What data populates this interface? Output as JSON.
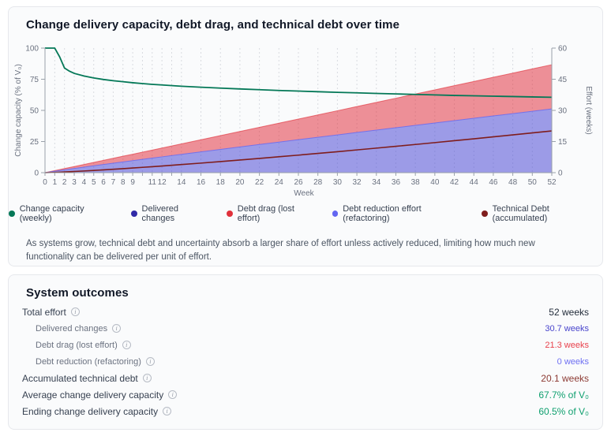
{
  "chart_card": {
    "title": "Change delivery capacity, debt drag, and technical debt over time",
    "description": "As systems grow, technical debt and uncertainty absorb a larger share of effort unless actively reduced, limiting how much new functionality can be delivered per unit of effort."
  },
  "legend": {
    "items": [
      {
        "label": "Change capacity (weekly)",
        "color": "#047857"
      },
      {
        "label": "Delivered changes",
        "color": "#312aa8"
      },
      {
        "label": "Debt drag (lost effort)",
        "color": "#e0313b"
      },
      {
        "label": "Debt reduction effort (refactoring)",
        "color": "#6366f1"
      },
      {
        "label": "Technical Debt (accumulated)",
        "color": "#7f1d1d"
      }
    ]
  },
  "chart_data": {
    "type": "area",
    "title": "Change delivery capacity, debt drag, and technical debt over time",
    "xlabel": "Week",
    "ylabel_left": "Change capacity (% of V₀)",
    "ylabel_right": "Effort (weeks)",
    "x_max": 52,
    "left_axis": {
      "max": 100,
      "ticks": [
        0,
        25,
        50,
        75,
        100
      ]
    },
    "right_axis": {
      "max": 60,
      "ticks": [
        0,
        15,
        30,
        45,
        60
      ]
    },
    "x_tick_labels": [
      0,
      1,
      2,
      3,
      4,
      5,
      6,
      7,
      8,
      9,
      11,
      12,
      14,
      16,
      18,
      20,
      22,
      24,
      26,
      28,
      30,
      32,
      34,
      36,
      38,
      40,
      42,
      44,
      46,
      48,
      50,
      52
    ],
    "x_gridlines": [
      1,
      2,
      3,
      4,
      5,
      6,
      7,
      8,
      9,
      10,
      11,
      12,
      13,
      14,
      16,
      18,
      20,
      22,
      24,
      26,
      28,
      30,
      32,
      34,
      36,
      38,
      40,
      42,
      44,
      46,
      48,
      50,
      52
    ],
    "grid": "vertical-dotted",
    "legend_position": "bottom",
    "weeks": [
      0,
      1,
      1.5,
      2,
      2.5,
      3,
      4,
      5,
      6,
      7,
      8,
      9,
      10,
      11,
      12,
      14,
      16,
      18,
      20,
      22,
      24,
      26,
      28,
      30,
      32,
      34,
      36,
      38,
      40,
      42,
      44,
      46,
      48,
      50,
      52
    ],
    "series": {
      "capacity_pct": [
        100,
        100,
        93,
        84,
        81.5,
        79.7,
        77.6,
        76,
        74.8,
        73.8,
        73,
        72.2,
        71.5,
        70.9,
        70.4,
        69.4,
        68.6,
        67.9,
        67.2,
        66.6,
        66,
        65.5,
        65,
        64.5,
        64.1,
        63.6,
        63.2,
        62.8,
        62.4,
        62,
        61.7,
        61.4,
        61.1,
        60.8,
        60.5
      ],
      "delivered_cum": [
        0,
        0.72,
        1.06,
        1.39,
        1.72,
        2.04,
        2.68,
        3.32,
        3.95,
        4.57,
        5.19,
        5.8,
        6.41,
        7.01,
        7.62,
        8.82,
        10.02,
        11.2,
        12.39,
        13.56,
        14.73,
        15.89,
        17.05,
        18.2,
        19.36,
        20.5,
        21.65,
        22.79,
        23.93,
        25.06,
        26.2,
        27.32,
        28.45,
        29.58,
        30.7
      ],
      "debt_drag_cum": [
        0,
        0.28,
        0.43,
        0.59,
        0.76,
        0.92,
        1.27,
        1.62,
        1.98,
        2.35,
        2.72,
        3.09,
        3.47,
        3.86,
        4.25,
        5.03,
        5.82,
        6.63,
        7.45,
        8.27,
        9.1,
        9.94,
        10.78,
        11.63,
        12.49,
        13.35,
        14.21,
        15.08,
        15.96,
        16.84,
        17.72,
        18.61,
        19.51,
        20.4,
        21.3
      ],
      "debt_reduction_cum": [
        0,
        0,
        0,
        0,
        0,
        0,
        0,
        0,
        0,
        0,
        0,
        0,
        0,
        0,
        0,
        0,
        0,
        0,
        0,
        0,
        0,
        0,
        0,
        0,
        0,
        0,
        0,
        0,
        0,
        0,
        0,
        0,
        0,
        0,
        0
      ],
      "tech_debt_cum": [
        0,
        0.14,
        0.24,
        0.34,
        0.45,
        0.57,
        0.81,
        1.08,
        1.35,
        1.64,
        1.94,
        2.24,
        2.56,
        2.88,
        3.21,
        3.9,
        4.6,
        5.34,
        6.09,
        6.86,
        7.65,
        8.45,
        9.27,
        10.1,
        10.96,
        11.82,
        12.69,
        13.58,
        14.48,
        15.39,
        16.31,
        17.24,
        18.19,
        19.14,
        20.1
      ]
    },
    "colors": {
      "capacity": "#047857",
      "delivered": "#312aa8",
      "debt_drag": "#e0313b",
      "debt_drag_fill": "rgba(224,45,58,0.52)",
      "debt_reduction": "#6366f1",
      "delivered_fill": "rgba(79,77,213,0.55)",
      "tech_debt": "#7f1d1d",
      "grid": "#d9dbe0",
      "axis": "#9aa1aa",
      "tick_text": "#6b7280"
    }
  },
  "outcomes": {
    "heading": "System outcomes",
    "rows": [
      {
        "label": "Total effort",
        "value": "52 weeks",
        "indent": false,
        "color": "#1f2937"
      },
      {
        "label": "Delivered changes",
        "value": "30.7 weeks",
        "indent": true,
        "color": "#4844cc"
      },
      {
        "label": "Debt drag (lost effort)",
        "value": "21.3 weeks",
        "indent": true,
        "color": "#e8414c"
      },
      {
        "label": "Debt reduction (refactoring)",
        "value": "0 weeks",
        "indent": true,
        "color": "#6d6ff2"
      },
      {
        "label": "Accumulated technical debt",
        "value": "20.1 weeks",
        "indent": false,
        "color": "#8c3a33"
      },
      {
        "label": "Average change delivery capacity",
        "value": "67.7% of V₀",
        "indent": false,
        "color": "#0e9f6e"
      },
      {
        "label": "Ending change delivery capacity",
        "value": "60.5% of V₀",
        "indent": false,
        "color": "#0e9f6e"
      }
    ]
  }
}
